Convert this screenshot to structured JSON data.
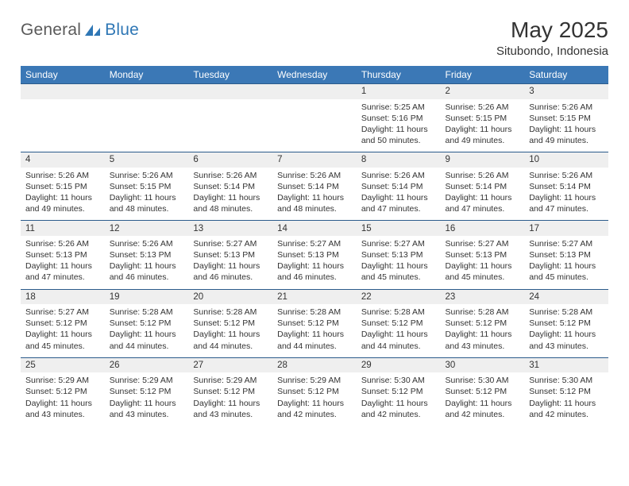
{
  "brand": {
    "general": "General",
    "blue": "Blue"
  },
  "header": {
    "month_title": "May 2025",
    "location": "Situbondo, Indonesia"
  },
  "colors": {
    "header_bar": "#3b78b6",
    "row_divider": "#2b5b8b",
    "daynum_bg": "#efefef",
    "text": "#333333",
    "brand_grey": "#5a5a5a",
    "brand_blue": "#2f77b5",
    "background": "#ffffff"
  },
  "days_of_week": [
    "Sunday",
    "Monday",
    "Tuesday",
    "Wednesday",
    "Thursday",
    "Friday",
    "Saturday"
  ],
  "weeks": [
    [
      null,
      null,
      null,
      null,
      {
        "n": "1",
        "sr": "5:25 AM",
        "ss": "5:16 PM",
        "dl1": "11 hours",
        "dl2": "and 50 minutes."
      },
      {
        "n": "2",
        "sr": "5:26 AM",
        "ss": "5:15 PM",
        "dl1": "11 hours",
        "dl2": "and 49 minutes."
      },
      {
        "n": "3",
        "sr": "5:26 AM",
        "ss": "5:15 PM",
        "dl1": "11 hours",
        "dl2": "and 49 minutes."
      }
    ],
    [
      {
        "n": "4",
        "sr": "5:26 AM",
        "ss": "5:15 PM",
        "dl1": "11 hours",
        "dl2": "and 49 minutes."
      },
      {
        "n": "5",
        "sr": "5:26 AM",
        "ss": "5:15 PM",
        "dl1": "11 hours",
        "dl2": "and 48 minutes."
      },
      {
        "n": "6",
        "sr": "5:26 AM",
        "ss": "5:14 PM",
        "dl1": "11 hours",
        "dl2": "and 48 minutes."
      },
      {
        "n": "7",
        "sr": "5:26 AM",
        "ss": "5:14 PM",
        "dl1": "11 hours",
        "dl2": "and 48 minutes."
      },
      {
        "n": "8",
        "sr": "5:26 AM",
        "ss": "5:14 PM",
        "dl1": "11 hours",
        "dl2": "and 47 minutes."
      },
      {
        "n": "9",
        "sr": "5:26 AM",
        "ss": "5:14 PM",
        "dl1": "11 hours",
        "dl2": "and 47 minutes."
      },
      {
        "n": "10",
        "sr": "5:26 AM",
        "ss": "5:14 PM",
        "dl1": "11 hours",
        "dl2": "and 47 minutes."
      }
    ],
    [
      {
        "n": "11",
        "sr": "5:26 AM",
        "ss": "5:13 PM",
        "dl1": "11 hours",
        "dl2": "and 47 minutes."
      },
      {
        "n": "12",
        "sr": "5:26 AM",
        "ss": "5:13 PM",
        "dl1": "11 hours",
        "dl2": "and 46 minutes."
      },
      {
        "n": "13",
        "sr": "5:27 AM",
        "ss": "5:13 PM",
        "dl1": "11 hours",
        "dl2": "and 46 minutes."
      },
      {
        "n": "14",
        "sr": "5:27 AM",
        "ss": "5:13 PM",
        "dl1": "11 hours",
        "dl2": "and 46 minutes."
      },
      {
        "n": "15",
        "sr": "5:27 AM",
        "ss": "5:13 PM",
        "dl1": "11 hours",
        "dl2": "and 45 minutes."
      },
      {
        "n": "16",
        "sr": "5:27 AM",
        "ss": "5:13 PM",
        "dl1": "11 hours",
        "dl2": "and 45 minutes."
      },
      {
        "n": "17",
        "sr": "5:27 AM",
        "ss": "5:13 PM",
        "dl1": "11 hours",
        "dl2": "and 45 minutes."
      }
    ],
    [
      {
        "n": "18",
        "sr": "5:27 AM",
        "ss": "5:12 PM",
        "dl1": "11 hours",
        "dl2": "and 45 minutes."
      },
      {
        "n": "19",
        "sr": "5:28 AM",
        "ss": "5:12 PM",
        "dl1": "11 hours",
        "dl2": "and 44 minutes."
      },
      {
        "n": "20",
        "sr": "5:28 AM",
        "ss": "5:12 PM",
        "dl1": "11 hours",
        "dl2": "and 44 minutes."
      },
      {
        "n": "21",
        "sr": "5:28 AM",
        "ss": "5:12 PM",
        "dl1": "11 hours",
        "dl2": "and 44 minutes."
      },
      {
        "n": "22",
        "sr": "5:28 AM",
        "ss": "5:12 PM",
        "dl1": "11 hours",
        "dl2": "and 44 minutes."
      },
      {
        "n": "23",
        "sr": "5:28 AM",
        "ss": "5:12 PM",
        "dl1": "11 hours",
        "dl2": "and 43 minutes."
      },
      {
        "n": "24",
        "sr": "5:28 AM",
        "ss": "5:12 PM",
        "dl1": "11 hours",
        "dl2": "and 43 minutes."
      }
    ],
    [
      {
        "n": "25",
        "sr": "5:29 AM",
        "ss": "5:12 PM",
        "dl1": "11 hours",
        "dl2": "and 43 minutes."
      },
      {
        "n": "26",
        "sr": "5:29 AM",
        "ss": "5:12 PM",
        "dl1": "11 hours",
        "dl2": "and 43 minutes."
      },
      {
        "n": "27",
        "sr": "5:29 AM",
        "ss": "5:12 PM",
        "dl1": "11 hours",
        "dl2": "and 43 minutes."
      },
      {
        "n": "28",
        "sr": "5:29 AM",
        "ss": "5:12 PM",
        "dl1": "11 hours",
        "dl2": "and 42 minutes."
      },
      {
        "n": "29",
        "sr": "5:30 AM",
        "ss": "5:12 PM",
        "dl1": "11 hours",
        "dl2": "and 42 minutes."
      },
      {
        "n": "30",
        "sr": "5:30 AM",
        "ss": "5:12 PM",
        "dl1": "11 hours",
        "dl2": "and 42 minutes."
      },
      {
        "n": "31",
        "sr": "5:30 AM",
        "ss": "5:12 PM",
        "dl1": "11 hours",
        "dl2": "and 42 minutes."
      }
    ]
  ],
  "labels": {
    "sunrise": "Sunrise: ",
    "sunset": "Sunset: ",
    "daylight": "Daylight: "
  }
}
